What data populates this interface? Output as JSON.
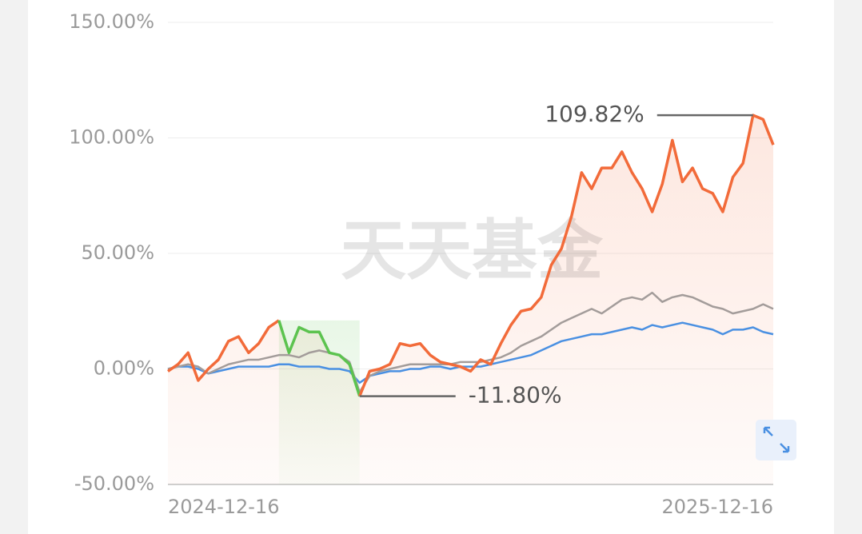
{
  "chart_data": {
    "type": "line",
    "watermark": "天天基金",
    "categories": [
      "2024-12-16",
      null,
      null,
      null,
      null,
      null,
      null,
      null,
      null,
      null,
      null,
      null,
      null,
      null,
      null,
      null,
      null,
      null,
      null,
      null,
      null,
      null,
      null,
      null,
      null,
      null,
      null,
      null,
      null,
      null,
      null,
      null,
      null,
      null,
      null,
      null,
      null,
      null,
      null,
      null,
      null,
      null,
      null,
      null,
      null,
      null,
      null,
      null,
      null,
      null,
      null,
      null,
      null,
      null,
      null,
      null,
      null,
      null,
      null,
      null,
      "2025-12-16"
    ],
    "ylim": [
      -50,
      150
    ],
    "yticks": [
      {
        "value": -50,
        "label": "-50.00%"
      },
      {
        "value": 0,
        "label": "0.00%"
      },
      {
        "value": 50,
        "label": "50.00%"
      },
      {
        "value": 100,
        "label": "100.00%"
      },
      {
        "value": 150,
        "label": "150.00%"
      }
    ],
    "grid": true,
    "drawdown_range": [
      11,
      19
    ],
    "drawdown_color": "#5cc34f",
    "series": [
      {
        "color": "#4a90e2",
        "values": [
          0,
          1,
          1,
          0,
          -2,
          -1,
          0,
          1,
          1,
          1,
          1,
          2,
          2,
          1,
          1,
          1,
          0,
          0,
          -1,
          -6,
          -3,
          -2,
          -1,
          -1,
          0,
          0,
          1,
          1,
          0,
          1,
          1,
          1,
          2,
          3,
          4,
          5,
          6,
          8,
          10,
          12,
          13,
          14,
          15,
          15,
          16,
          17,
          18,
          17,
          19,
          18,
          19,
          20,
          19,
          18,
          17,
          15,
          17,
          17,
          18,
          16,
          15
        ]
      },
      {
        "color": "#a39c9a",
        "values": [
          0,
          1,
          2,
          1,
          -2,
          0,
          2,
          3,
          4,
          4,
          5,
          6,
          6,
          5,
          7,
          8,
          7,
          6,
          3,
          -10,
          -3,
          -1,
          0,
          1,
          2,
          2,
          2,
          2,
          2,
          3,
          3,
          3,
          4,
          5,
          7,
          10,
          12,
          14,
          17,
          20,
          22,
          24,
          26,
          24,
          27,
          30,
          31,
          30,
          33,
          29,
          31,
          32,
          31,
          29,
          27,
          26,
          24,
          25,
          26,
          28,
          26
        ]
      },
      {
        "color": "#f26b3a",
        "values": [
          -1,
          2,
          7,
          -5,
          0,
          4,
          12,
          14,
          7,
          11,
          18,
          21,
          7,
          18,
          16,
          16,
          7,
          6,
          2,
          -11.8,
          -1,
          0,
          2,
          11,
          10,
          11,
          6,
          3,
          2,
          1,
          -1,
          4,
          2,
          11,
          19,
          25,
          26,
          31,
          45,
          52,
          66,
          85,
          78,
          87,
          87,
          94,
          85,
          78,
          68,
          80,
          99,
          81,
          87,
          78,
          76,
          68,
          83,
          89,
          109.82,
          108,
          97
        ]
      }
    ],
    "annotations": [
      {
        "text": "109.82%",
        "series": 2,
        "index": 58
      },
      {
        "text": "-11.80%",
        "series": 2,
        "index": 19
      }
    ]
  }
}
